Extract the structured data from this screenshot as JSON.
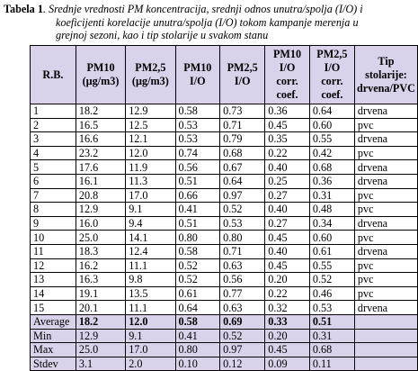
{
  "caption": {
    "label": "Tabela 1",
    "line1": ". Srednje vrednosti PM koncentracija, srednji odnos unutra/spolja (I/O) i",
    "line2": "koeficijenti korelacije unutra/spolja (I/O) tokom kampanje merenja u",
    "line3": "grejnoj sezoni, kao i tip stolarije u svakom stanu"
  },
  "columns": [
    {
      "key": "rb",
      "lines": [
        "R.B."
      ]
    },
    {
      "key": "pm10",
      "lines": [
        "PM10",
        "(µg/m3)"
      ]
    },
    {
      "key": "pm25",
      "lines": [
        "PM2,5",
        "(µg/m3)"
      ]
    },
    {
      "key": "io10",
      "lines": [
        "PM10",
        "I/O"
      ]
    },
    {
      "key": "io25",
      "lines": [
        "PM2,5",
        "I/O"
      ]
    },
    {
      "key": "cc10",
      "lines": [
        "PM10",
        "I/O",
        "corr.",
        "coef."
      ]
    },
    {
      "key": "cc25",
      "lines": [
        "PM2,5",
        "I/O",
        "corr.",
        "coef."
      ]
    },
    {
      "key": "tip",
      "lines": [
        "Tip",
        "stolarije:",
        "drvena/PVC"
      ]
    }
  ],
  "rows": [
    [
      "1",
      "18.2",
      "12.9",
      "0.58",
      "0.73",
      "0.36",
      "0.64",
      "drvena"
    ],
    [
      "2",
      "16.5",
      "12.5",
      "0.53",
      "0.71",
      "0.45",
      "0.60",
      "pvc"
    ],
    [
      "3",
      "16.6",
      "12.1",
      "0.53",
      "0.79",
      "0.35",
      "0.55",
      "drvena"
    ],
    [
      "4",
      "23.2",
      "12.0",
      "0.74",
      "0.68",
      "0.22",
      "0.42",
      "pvc"
    ],
    [
      "5",
      "17.6",
      "11.9",
      "0.56",
      "0.67",
      "0.40",
      "0.68",
      "drvena"
    ],
    [
      "6",
      "16.1",
      "11.3",
      "0.51",
      "0.64",
      "0.25",
      "0.36",
      "drvena"
    ],
    [
      "7",
      "20.8",
      "17.0",
      "0.66",
      "0.97",
      "0.27",
      "0.31",
      "pvc"
    ],
    [
      "8",
      "12.9",
      "9.1",
      "0.41",
      "0.52",
      "0.40",
      "0.48",
      "pvc"
    ],
    [
      "9",
      "16.0",
      "9.4",
      "0.51",
      "0.53",
      "0.27",
      "0.34",
      "drvena"
    ],
    [
      "10",
      "25.0",
      "14.1",
      "0.80",
      "0.80",
      "0.45",
      "0.60",
      "pvc"
    ],
    [
      "11",
      "18.3",
      "12.4",
      "0.58",
      "0.71",
      "0.40",
      "0.61",
      "drvena"
    ],
    [
      "12",
      "16.2",
      "11.1",
      "0.52",
      "0.63",
      "0.45",
      "0.55",
      "pvc"
    ],
    [
      "13",
      "16.3",
      "9.8",
      "0.52",
      "0.56",
      "0.20",
      "0.52",
      "pvc"
    ],
    [
      "14",
      "19.1",
      "13.5",
      "0.61",
      "0.77",
      "0.22",
      "0.46",
      "pvc"
    ],
    [
      "15",
      "20.1",
      "11.1",
      "0.64",
      "0.63",
      "0.32",
      "0.53",
      "drvena"
    ]
  ],
  "stats": [
    {
      "kind": "avg",
      "cells": [
        "Average",
        "18.2",
        "12.0",
        "0.58",
        "0.69",
        "0.33",
        "0.51",
        ""
      ]
    },
    {
      "kind": "stat",
      "cells": [
        "Min",
        "12.9",
        "9.1",
        "0.41",
        "0.52",
        "0.20",
        "0.31",
        ""
      ]
    },
    {
      "kind": "stat",
      "cells": [
        "Max",
        "25.0",
        "17.0",
        "0.80",
        "0.97",
        "0.45",
        "0.68",
        ""
      ]
    },
    {
      "kind": "stat",
      "cells": [
        "Stdev",
        "3.1",
        "2.0",
        "0.10",
        "0.12",
        "0.09",
        "0.11",
        ""
      ]
    }
  ],
  "colors": {
    "header_bg": "#d9d2ea",
    "border": "#000000"
  }
}
